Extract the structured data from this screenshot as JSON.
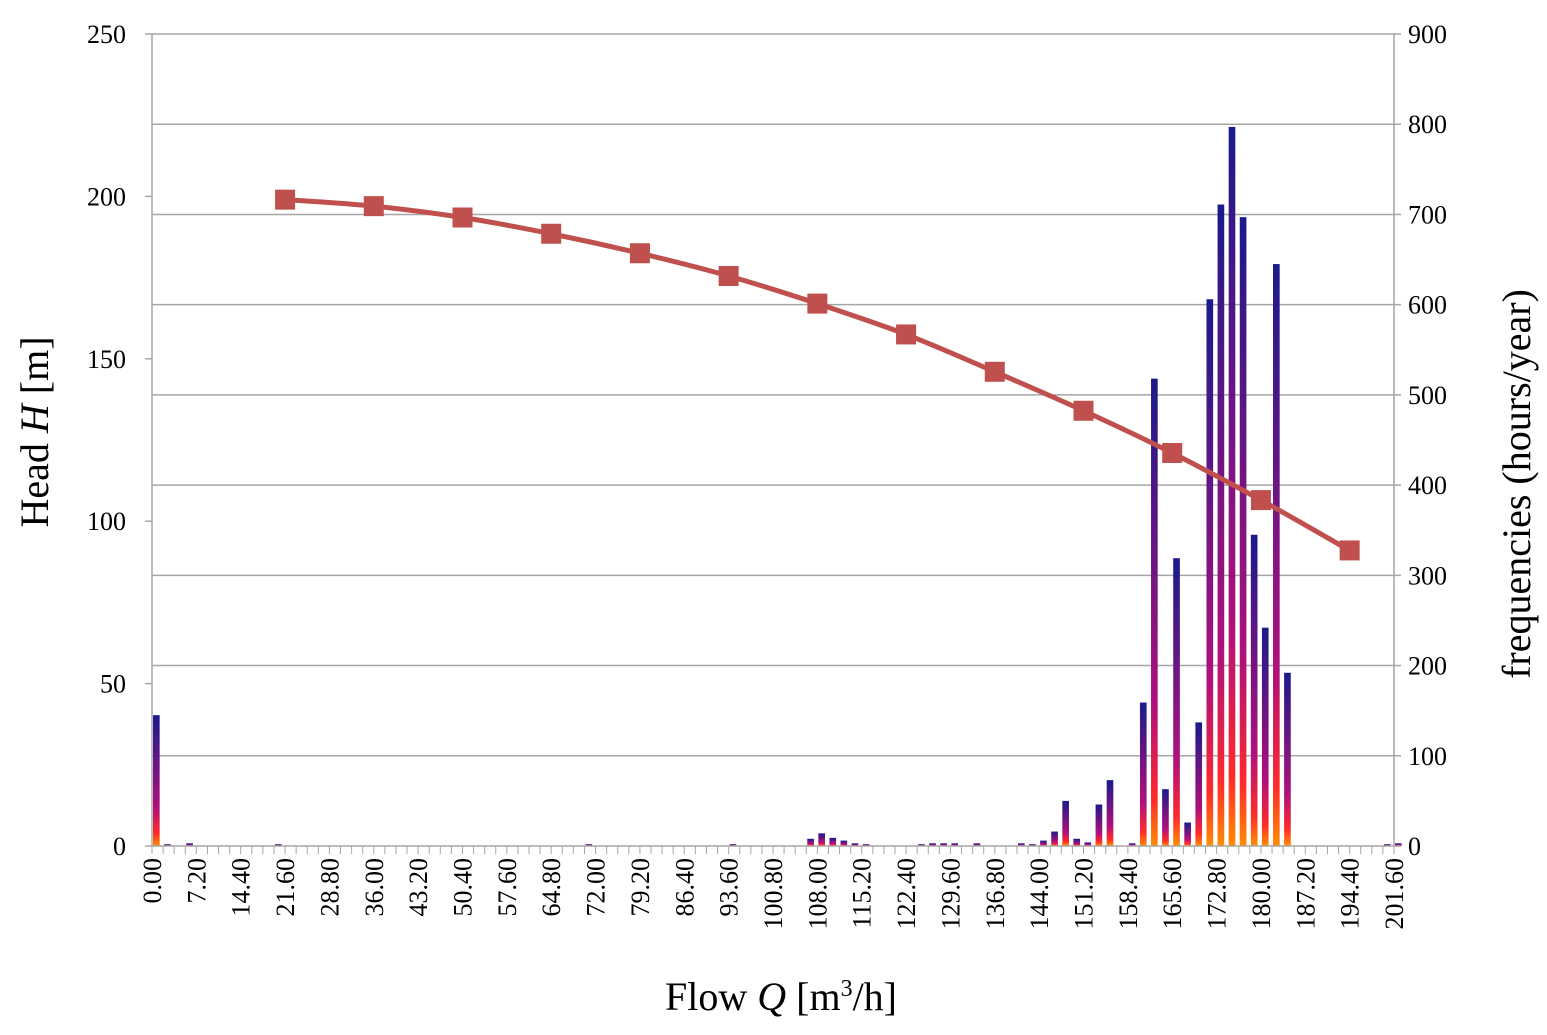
{
  "chart_data": {
    "type": "bar+line",
    "xlabel": {
      "prefix": "Flow ",
      "italic": "Q",
      "unit_open": " [m",
      "sup": "3",
      "unit_close": "/h]"
    },
    "ylabel_left": {
      "prefix": "Head ",
      "italic": "H",
      "unit": " [m]"
    },
    "ylabel_right": "frequencies (hours/year)",
    "x_range": [
      0,
      201.6
    ],
    "x_step": 1.8,
    "x_tick_labels": [
      "0.00",
      "7.20",
      "14.40",
      "21.60",
      "28.80",
      "36.00",
      "43.20",
      "50.40",
      "57.60",
      "64.80",
      "72.00",
      "79.20",
      "86.40",
      "93.60",
      "100.80",
      "108.00",
      "115.20",
      "122.40",
      "129.60",
      "136.80",
      "144.00",
      "151.20",
      "158.40",
      "165.60",
      "172.80",
      "180.00",
      "187.20",
      "194.40",
      "201.60"
    ],
    "y_left_range": [
      0,
      250
    ],
    "y_left_ticks": [
      "0",
      "50",
      "100",
      "150",
      "200",
      "250"
    ],
    "y_right_range": [
      0,
      900
    ],
    "y_right_ticks": [
      "0",
      "100",
      "200",
      "300",
      "400",
      "500",
      "600",
      "700",
      "800",
      "900"
    ],
    "grid": "horizontal, right axis",
    "colors": {
      "curve": "#c0504d",
      "bar_top": "#1a1a8c",
      "bar_mid": "#b0107c",
      "bar_low": "#ff2a2a",
      "bar_base": "#ff8c00",
      "grid": "#a6a6a6"
    },
    "series": [
      {
        "type": "line",
        "axis": "left",
        "points": [
          [
            21.6,
            199
          ],
          [
            36.0,
            197
          ],
          [
            50.4,
            193.5
          ],
          [
            64.8,
            188.5
          ],
          [
            79.2,
            182.5
          ],
          [
            93.6,
            175.5
          ],
          [
            108.0,
            167
          ],
          [
            122.4,
            157.5
          ],
          [
            136.8,
            146
          ],
          [
            151.2,
            134
          ],
          [
            165.6,
            121
          ],
          [
            180.0,
            106.5
          ],
          [
            194.4,
            91
          ]
        ]
      },
      {
        "type": "bar",
        "axis": "right",
        "points": [
          [
            0.0,
            145
          ],
          [
            1.8,
            2
          ],
          [
            5.4,
            3
          ],
          [
            19.8,
            2
          ],
          [
            70.2,
            2
          ],
          [
            93.6,
            2
          ],
          [
            106.2,
            8
          ],
          [
            108.0,
            14
          ],
          [
            109.8,
            9
          ],
          [
            111.6,
            6
          ],
          [
            113.4,
            3
          ],
          [
            115.2,
            2
          ],
          [
            124.2,
            2
          ],
          [
            126.0,
            3
          ],
          [
            127.8,
            3
          ],
          [
            129.6,
            3
          ],
          [
            133.2,
            3
          ],
          [
            140.4,
            3
          ],
          [
            142.2,
            2
          ],
          [
            144.0,
            6
          ],
          [
            145.8,
            16
          ],
          [
            147.6,
            50
          ],
          [
            149.4,
            8
          ],
          [
            151.2,
            4
          ],
          [
            153.0,
            46
          ],
          [
            154.8,
            73
          ],
          [
            158.4,
            3
          ],
          [
            160.2,
            159
          ],
          [
            162.0,
            518
          ],
          [
            163.8,
            63
          ],
          [
            165.6,
            319
          ],
          [
            167.4,
            26
          ],
          [
            169.2,
            137
          ],
          [
            171.0,
            606
          ],
          [
            172.8,
            711
          ],
          [
            174.6,
            797
          ],
          [
            176.4,
            697
          ],
          [
            178.2,
            345
          ],
          [
            180.0,
            242
          ],
          [
            181.8,
            645
          ],
          [
            183.6,
            192
          ],
          [
            199.8,
            2
          ],
          [
            201.6,
            3
          ]
        ]
      }
    ]
  }
}
